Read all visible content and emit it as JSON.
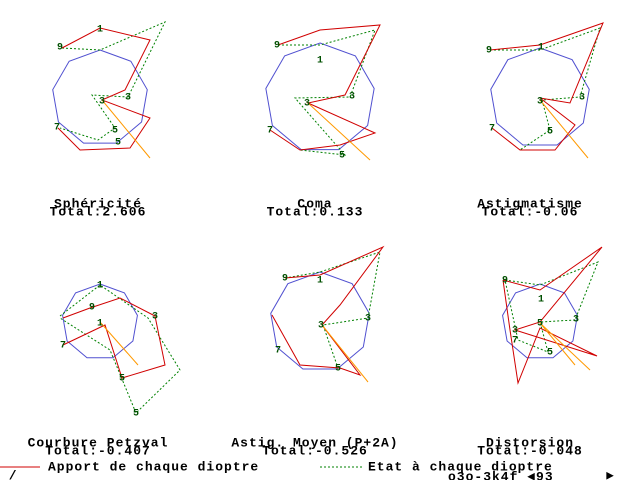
{
  "panels": [
    {
      "title": "Sphéricité",
      "total": "Total:2.606",
      "labels": [
        "1",
        "9",
        "3",
        "3",
        "5",
        "5",
        "7"
      ]
    },
    {
      "title": "Coma",
      "total": "Total:0.133",
      "labels": [
        "9",
        "1",
        "3",
        "3",
        "5",
        "7"
      ]
    },
    {
      "title": "Astigmatisme",
      "total": "Total:-0.06",
      "labels": [
        "9",
        "1",
        "3",
        "3",
        "5",
        "7"
      ]
    },
    {
      "title": "Courbure Petzval",
      "total": "Total:-0.407",
      "labels": [
        "1",
        "9",
        "3",
        "5",
        "5",
        "7",
        "1"
      ]
    },
    {
      "title": "Astig. Moyen (P+2A)",
      "total": "Total:-0.526",
      "labels": [
        "9",
        "1",
        "3",
        "3",
        "5",
        "7"
      ]
    },
    {
      "title": "Distorsion",
      "total": "Total:-0.048",
      "labels": [
        "9",
        "1",
        "3",
        "3",
        "5",
        "5",
        "7"
      ]
    }
  ],
  "legend": {
    "red": "Apport de chaque dioptre",
    "green": "Etat à chaque dioptre"
  },
  "footer": {
    "corner": "_/_",
    "status": "o3o-3k4f ◄93",
    "arrow": "►"
  }
}
